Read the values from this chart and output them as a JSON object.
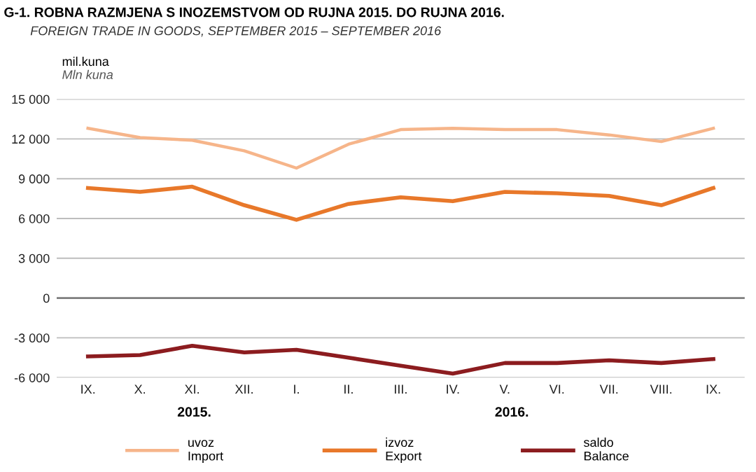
{
  "chart_data": {
    "type": "line",
    "title": "G-1. ROBNA RAZMJENA S INOZEMSTVOM OD RUJNA 2015. DO RUJNA 2016.",
    "subtitle": "FOREIGN TRADE IN GOODS, SEPTEMBER 2015 – SEPTEMBER 2016",
    "ylabel": "mil.kuna\nMln kuna",
    "categories": [
      "IX.",
      "X.",
      "XI.",
      "XII.",
      "I.",
      "II.",
      "III.",
      "IV.",
      "V.",
      "VI.",
      "VII.",
      "VIII.",
      "IX."
    ],
    "series": [
      {
        "name": "uvoz\nImport",
        "color": "#f6b58a",
        "values": [
          12800,
          12100,
          11900,
          11100,
          9800,
          11600,
          12700,
          12800,
          12700,
          12700,
          12300,
          11800,
          12800
        ]
      },
      {
        "name": "izvoz\nExport",
        "color": "#e8782a",
        "values": [
          8300,
          8000,
          8400,
          7000,
          5900,
          7100,
          7600,
          7300,
          8000,
          7900,
          7700,
          7000,
          8300
        ]
      },
      {
        "name": "saldo\nBalance",
        "color": "#8c1c1f",
        "values": [
          -4400,
          -4300,
          -3600,
          -4100,
          -3900,
          -4500,
          -5100,
          -5700,
          -4900,
          -4900,
          -4700,
          -4900,
          -4600
        ]
      }
    ],
    "ylim": [
      -6000,
      15000
    ],
    "yticks": [
      {
        "value": -6000,
        "label": "-6 000"
      },
      {
        "value": -3000,
        "label": "-3 000"
      },
      0,
      {
        "value": 3000,
        "label": "3 000"
      },
      {
        "value": 6000,
        "label": "6 000"
      },
      {
        "value": 9000,
        "label": "9 000"
      },
      {
        "value": 12000,
        "label": "12 000"
      },
      {
        "value": 15000,
        "label": "15 000"
      }
    ],
    "ref_lines": [
      {
        "axis": "y",
        "value": 0,
        "color": "#808080"
      }
    ],
    "annotations": [
      "2015.",
      "2016."
    ],
    "grid": "y",
    "legend": "bottom",
    "marker": "none",
    "line_style": "solid"
  }
}
